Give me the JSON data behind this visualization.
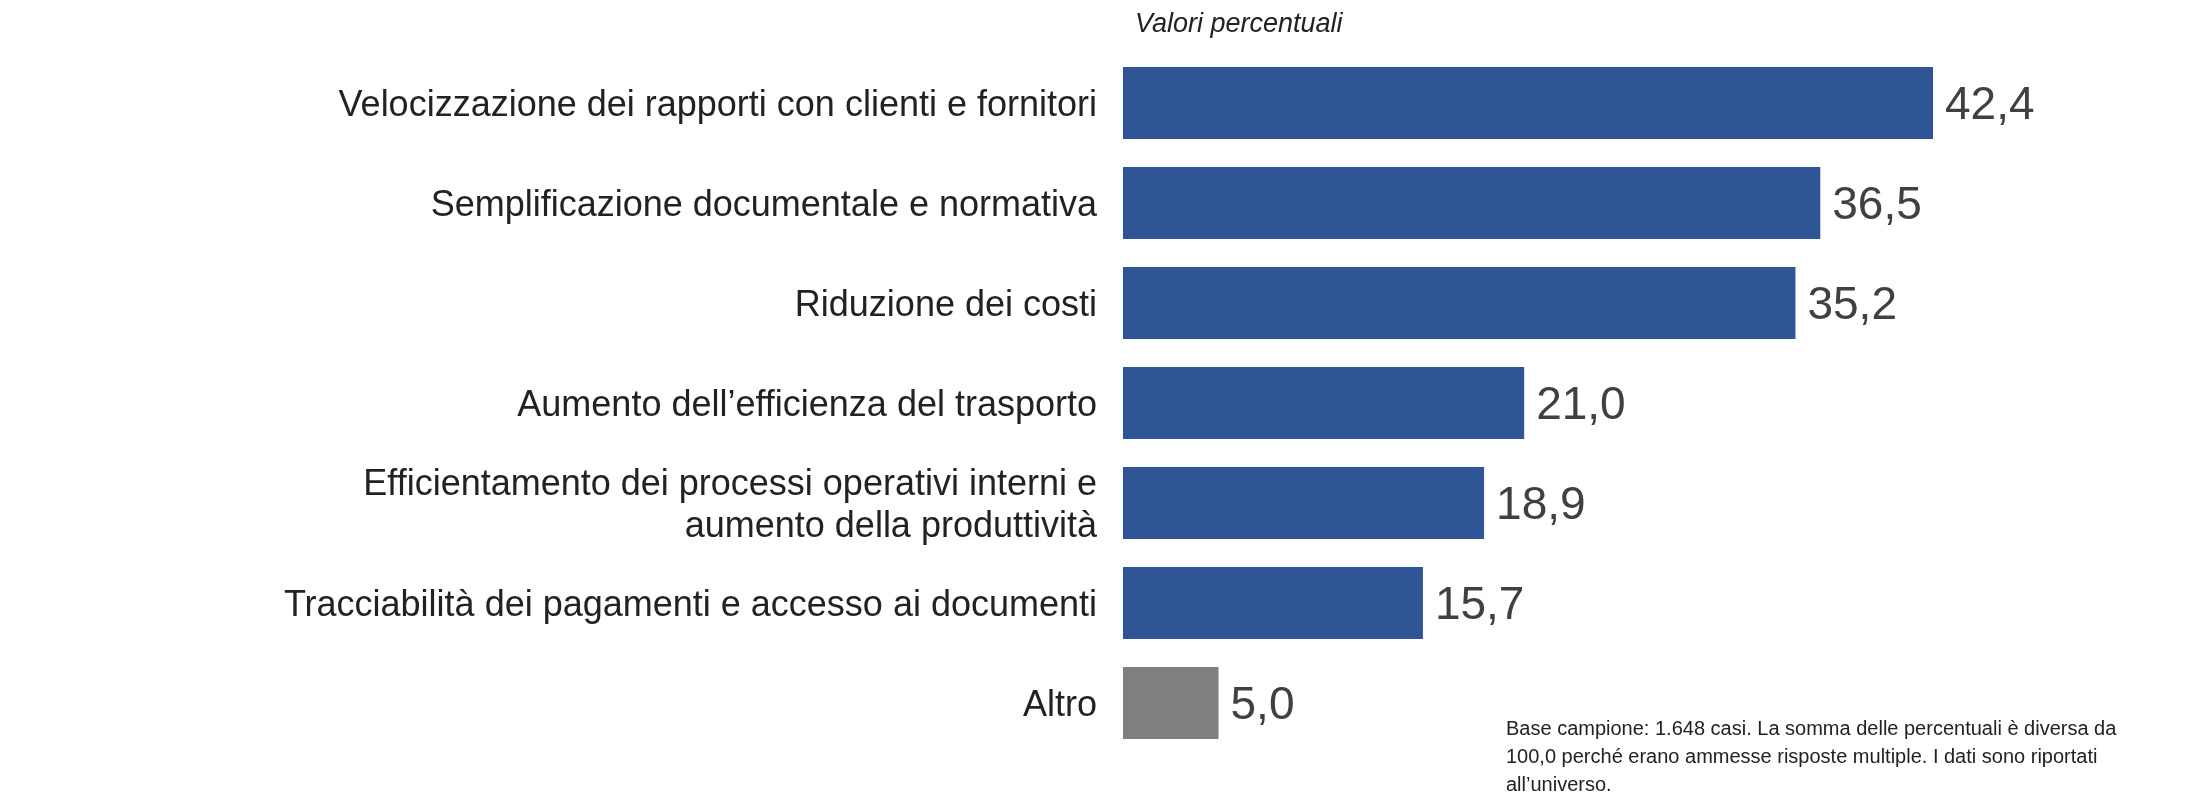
{
  "chart_data": {
    "type": "bar",
    "orientation": "horizontal",
    "subtitle": "Valori percentuali",
    "categories": [
      "Velocizzazione dei rapporti con clienti e fornitori",
      "Semplificazione documentale e normativa",
      "Riduzione dei costi",
      "Aumento dell’efficienza del trasporto",
      "Efficientamento dei processi operativi interni e aumento della produttività",
      "Tracciabilità dei pagamenti e accesso ai documenti",
      "Altro"
    ],
    "values": [
      42.4,
      36.5,
      35.2,
      21.0,
      18.9,
      15.7,
      5.0
    ],
    "value_labels": [
      "42,4",
      "36,5",
      "35,2",
      "21,0",
      "18,9",
      "15,7",
      "5,0"
    ],
    "colors": [
      "#2f5597",
      "#2f5597",
      "#2f5597",
      "#2f5597",
      "#2f5597",
      "#2f5597",
      "#7f7f7f"
    ],
    "annotations": [
      "Base campione: 1.648 casi. La somma delle percentuali è diversa da 100,0 perché erano ammesse risposte multiple. I dati sono riportati all’universo."
    ]
  }
}
